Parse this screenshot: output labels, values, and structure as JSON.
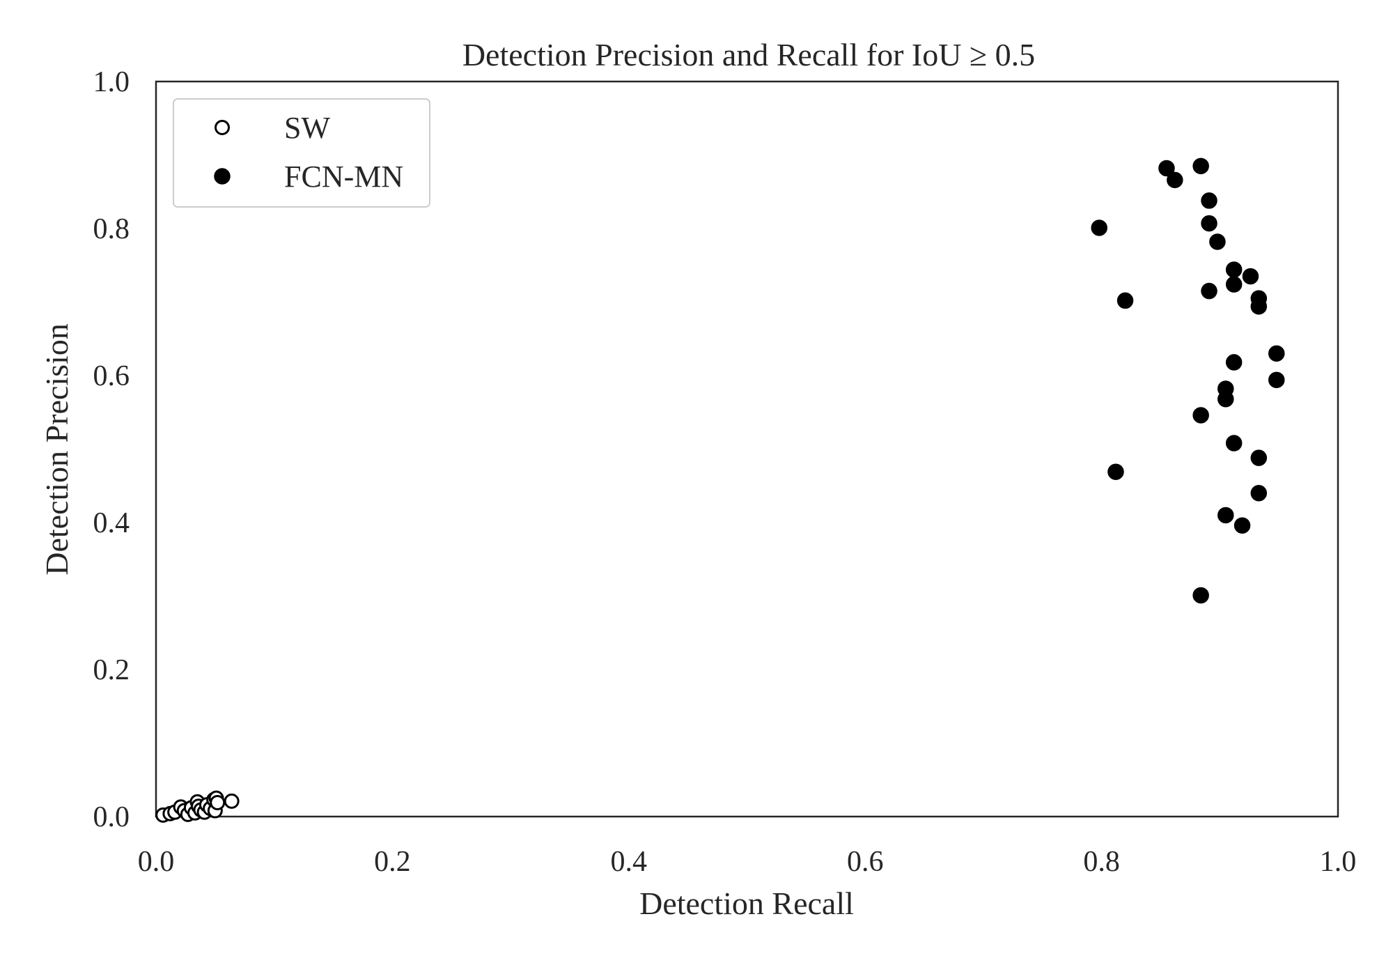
{
  "chart_data": {
    "type": "scatter",
    "title": "Detection Precision and Recall for IoU  ≥  0.5",
    "xlabel": "Detection Recall",
    "ylabel": "Detection Precision",
    "xlim": [
      0.0,
      1.0
    ],
    "ylim": [
      0.0,
      1.0
    ],
    "xticks": [
      "0.0",
      "0.2",
      "0.4",
      "0.6",
      "0.8",
      "1.0"
    ],
    "yticks": [
      "0.0",
      "0.2",
      "0.4",
      "0.6",
      "0.8",
      "1.0"
    ],
    "grid": false,
    "legend_position": "top-left",
    "series": [
      {
        "name": "SW",
        "marker": "open-circle",
        "color": "#000000",
        "points": [
          [
            0.006,
            0.002
          ],
          [
            0.012,
            0.004
          ],
          [
            0.016,
            0.006
          ],
          [
            0.021,
            0.013
          ],
          [
            0.024,
            0.008
          ],
          [
            0.027,
            0.003
          ],
          [
            0.03,
            0.012
          ],
          [
            0.033,
            0.005
          ],
          [
            0.035,
            0.02
          ],
          [
            0.036,
            0.014
          ],
          [
            0.038,
            0.009
          ],
          [
            0.041,
            0.006
          ],
          [
            0.043,
            0.016
          ],
          [
            0.046,
            0.011
          ],
          [
            0.049,
            0.023
          ],
          [
            0.05,
            0.008
          ],
          [
            0.051,
            0.025
          ],
          [
            0.052,
            0.019
          ],
          [
            0.064,
            0.021
          ]
        ]
      },
      {
        "name": "FCN-MN",
        "marker": "filled-circle",
        "color": "#000000",
        "points": [
          [
            0.798,
            0.801
          ],
          [
            0.812,
            0.469
          ],
          [
            0.82,
            0.702
          ],
          [
            0.855,
            0.882
          ],
          [
            0.862,
            0.866
          ],
          [
            0.884,
            0.885
          ],
          [
            0.884,
            0.546
          ],
          [
            0.884,
            0.301
          ],
          [
            0.891,
            0.838
          ],
          [
            0.891,
            0.807
          ],
          [
            0.891,
            0.715
          ],
          [
            0.898,
            0.782
          ],
          [
            0.905,
            0.582
          ],
          [
            0.905,
            0.568
          ],
          [
            0.905,
            0.41
          ],
          [
            0.912,
            0.744
          ],
          [
            0.912,
            0.724
          ],
          [
            0.912,
            0.618
          ],
          [
            0.912,
            0.508
          ],
          [
            0.919,
            0.396
          ],
          [
            0.926,
            0.735
          ],
          [
            0.933,
            0.705
          ],
          [
            0.933,
            0.694
          ],
          [
            0.933,
            0.488
          ],
          [
            0.933,
            0.44
          ],
          [
            0.948,
            0.63
          ],
          [
            0.948,
            0.594
          ]
        ]
      }
    ]
  }
}
